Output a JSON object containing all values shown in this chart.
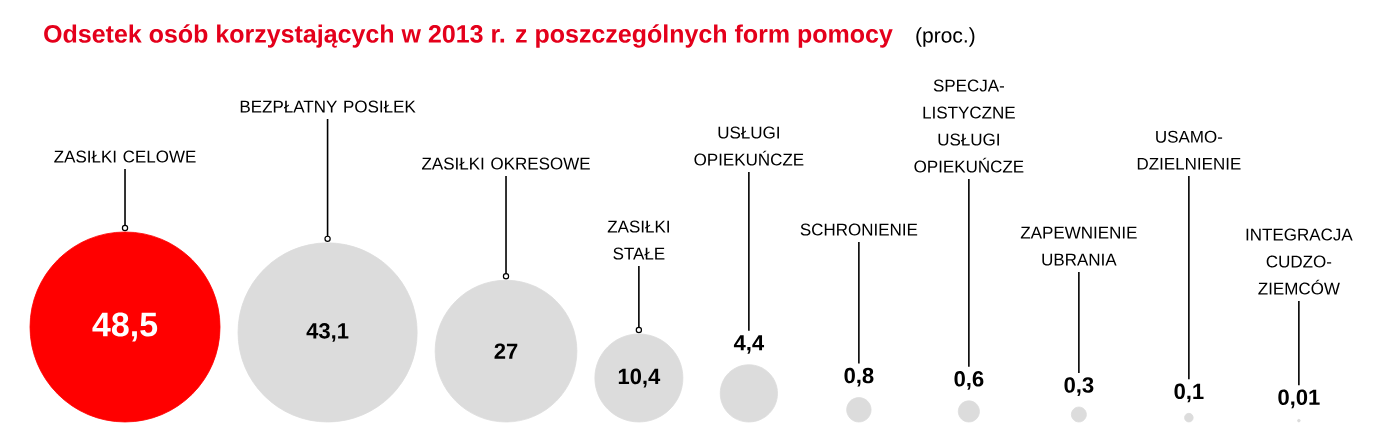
{
  "chart_data": {
    "type": "other",
    "title": "Odsetek osób korzystających w 2013 r. z poszczególnych form pomocy",
    "subtitle": "(proc.)",
    "categories": [
      "ZASIŁKI CELOWE",
      "BEZPŁATNY POSIŁEK",
      "ZASIŁKI OKRESOWE",
      "ZASIŁKI STAŁE",
      "USŁUGI OPIEKUŃCZE",
      "SCHRONIENIE",
      "SPECJA-LISTYCZNE USŁUGI OPIEKUŃCZE",
      "ZAPEWNIENIE UBRANIA",
      "USAMO-DZIELNIENIE",
      "INTEGRACJA CUDZO-ZIEMCÓW"
    ],
    "values": [
      48.5,
      43.1,
      27,
      10.4,
      4.4,
      0.8,
      0.6,
      0.3,
      0.1,
      0.01
    ],
    "value_labels": [
      "48,5",
      "43,1",
      "27",
      "10,4",
      "4,4",
      "0,8",
      "0,6",
      "0,3",
      "0,1",
      "0,01"
    ],
    "colors": [
      "#ff0000",
      "#dcdcdc",
      "#dcdcdc",
      "#dcdcdc",
      "#dcdcdc",
      "#dcdcdc",
      "#dcdcdc",
      "#dcdcdc",
      "#dcdcdc",
      "#dcdcdc"
    ]
  }
}
